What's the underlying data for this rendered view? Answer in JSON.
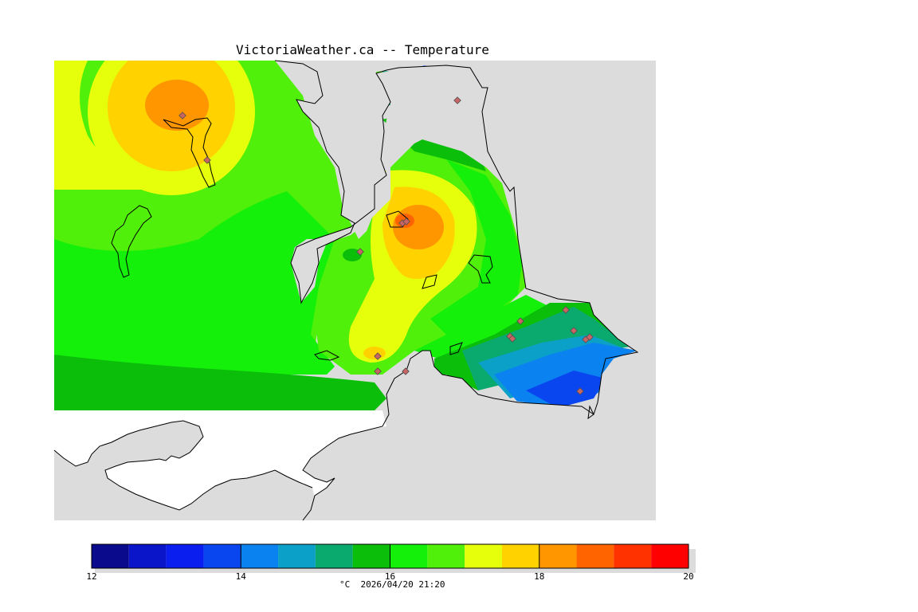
{
  "title": "VictoriaWeather.ca -- Temperature",
  "caption": "°C  2026/04/20 21:20",
  "colorbar": {
    "min": 12,
    "max": 20,
    "ticks": [
      12,
      14,
      16,
      18,
      20
    ],
    "colors": [
      "#0a0a8c",
      "#0a14c8",
      "#0a1ef0",
      "#0a46f0",
      "#0a82f0",
      "#0aa0c8",
      "#0aaa6e",
      "#0abe0a",
      "#14f00a",
      "#50f00a",
      "#e6ff0a",
      "#ffd200",
      "#ff9600",
      "#ff6400",
      "#ff3200",
      "#ff0000"
    ]
  },
  "colors": {
    "background": "#ffffff",
    "no_data": "#dcdcdc",
    "coast": "#000000",
    "station_marker": "#c86464"
  },
  "stations_count": 18
}
